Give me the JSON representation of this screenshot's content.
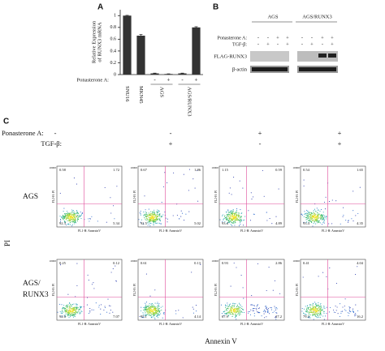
{
  "chart_data": {
    "type": "bar",
    "panel_label": "A",
    "ylabel": [
      "Relative Expression",
      "of RUNX3 mRNA"
    ],
    "categories": [
      "SNU16",
      "MKN45",
      null,
      null,
      null,
      null
    ],
    "values": [
      1.0,
      0.66,
      0.02,
      0.01,
      0.02,
      0.8
    ],
    "errors": [
      0.005,
      0.02,
      0.005,
      0.003,
      0.005,
      0.012
    ],
    "color": "#333333",
    "ylim": [
      0,
      1.1
    ],
    "yticks": [
      0,
      0.2,
      0.4,
      0.6,
      0.8,
      1
    ],
    "groups": [
      "AGS",
      "AGS/RUNX3"
    ],
    "treatment_label": "Ponasterone A:",
    "treatment": [
      null,
      null,
      "-",
      "+",
      "-",
      "+"
    ]
  },
  "blot": {
    "panel_label": "B",
    "groups": [
      "AGS",
      "AGS/RUNX3"
    ],
    "conditions": [
      {
        "label": "Ponasterone A:",
        "signs": [
          "-",
          "-",
          "+",
          "+",
          "-",
          "-",
          "+",
          "+"
        ]
      },
      {
        "label": "TGF-β:",
        "signs": [
          "-",
          "+",
          "-",
          "+",
          "-",
          "+",
          "-",
          "+"
        ]
      }
    ],
    "rows": [
      "FLAG-RUNX3",
      "β-actin"
    ]
  },
  "flow": {
    "panel_label": "C",
    "conditions": [
      {
        "label": "Ponasterone A:",
        "signs": [
          "-",
          "-",
          "+",
          "+"
        ]
      },
      {
        "label": "TGF-β:",
        "signs": [
          "-",
          "+",
          "-",
          "+"
        ]
      }
    ],
    "rows": [
      {
        "label": [
          "AGS"
        ],
        "plots": [
          {
            "ul": 0.58,
            "ur": 1.72,
            "ll": 92.3,
            "lr": 5.34
          },
          {
            "ul": 0.67,
            "ur": 1.86,
            "ll": 92.5,
            "lr": 5.02
          },
          {
            "ul": 1.15,
            "ur": 0.59,
            "ll": 93.4,
            "lr": 4.89
          },
          {
            "ul": 0.54,
            "ur": 1.65,
            "ll": 93.4,
            "lr": 4.35
          }
        ]
      },
      {
        "label": [
          "AGS/",
          "RUNX3"
        ],
        "plots": [
          {
            "ul": 0.25,
            "ur": 0.12,
            "ll": 92.6,
            "lr": 7.07
          },
          {
            "ul": 0.61,
            "ur": 0.13,
            "ll": 95.1,
            "lr": 4.14
          },
          {
            "ul": 0.93,
            "ur": 2.86,
            "ll": 67.9,
            "lr": 27.2
          },
          {
            "ul": 0.41,
            "ur": 4.04,
            "ll": 79.3,
            "lr": 16.2
          }
        ]
      }
    ],
    "ylabel": "PI",
    "xlabel": "Annexin V",
    "plot_xlabel": "FL1-H: AnnexinV",
    "plot_ylabel": "FL2-H: PI",
    "plot_ymax": "10000"
  }
}
